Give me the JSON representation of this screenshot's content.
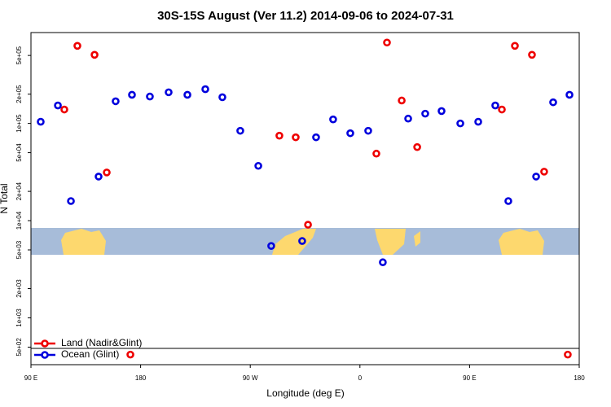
{
  "chart_data": {
    "type": "scatter",
    "title": "30S-15S August (Ver 11.2)   2014-09-06 to 2024-07-31",
    "x_label": "Longitude (deg E)",
    "y_label": "N Total",
    "log_y": true,
    "legend": "bottom-left",
    "xlim": [
      90,
      540
    ],
    "xticks": [
      {
        "value": 90,
        "label": "90 E"
      },
      180,
      {
        "value": 270,
        "label": "90 W"
      },
      {
        "value": 360,
        "label": "0"
      },
      {
        "value": 450,
        "label": "90 E"
      },
      {
        "value": 540,
        "label": "180"
      }
    ],
    "ylim": [
      330,
      860000
    ],
    "yticks": [
      {
        "value": 500,
        "label": "5e+02"
      },
      {
        "value": 1000,
        "label": "1e+03"
      },
      {
        "value": 2000,
        "label": "2e+03"
      },
      {
        "value": 5000,
        "label": "5e+03"
      },
      {
        "value": 10000,
        "label": "1e+04"
      },
      {
        "value": 20000,
        "label": "2e+04"
      },
      {
        "value": 50000,
        "label": "5e+04"
      },
      {
        "value": 100000,
        "label": "1e+05"
      },
      {
        "value": 200000,
        "label": "2e+05"
      },
      {
        "value": 500000,
        "label": "5e+05"
      }
    ],
    "series": [
      {
        "name": "Land (Nadir&Glint)",
        "color": "#ee0000",
        "x": [
          117.4,
          128.1,
          142.2,
          152.2,
          171.6,
          293.9,
          307.3,
          317.4,
          373.5,
          382.2,
          394.3,
          407.0,
          476.5,
          487.2,
          501.2,
          511.2,
          530.6
        ],
        "values": [
          139000,
          628000,
          508000,
          31300,
          419,
          74800,
          72000,
          9080,
          48900,
          679000,
          172000,
          57100,
          139000,
          628000,
          508000,
          31900,
          419
        ]
      },
      {
        "name": "Ocean (Glint)",
        "color": "#0000dd",
        "x": [
          98.0,
          112.1,
          122.8,
          145.5,
          159.5,
          172.9,
          187.6,
          203.0,
          218.4,
          233.1,
          247.1,
          261.8,
          276.6,
          287.2,
          312.6,
          324.0,
          338.0,
          352.1,
          366.8,
          378.8,
          399.6,
          413.6,
          427.0,
          442.4,
          457.1,
          471.1,
          481.8,
          504.6,
          518.6,
          532.0
        ],
        "values": [
          104000,
          153000,
          15900,
          28400,
          169000,
          197000,
          189000,
          209000,
          197000,
          225000,
          186000,
          84000,
          36600,
          5490,
          6170,
          72000,
          110000,
          79300,
          84000,
          3730,
          112000,
          126000,
          134000,
          100000,
          104000,
          153000,
          15900,
          28400,
          165000,
          197000
        ]
      }
    ]
  }
}
